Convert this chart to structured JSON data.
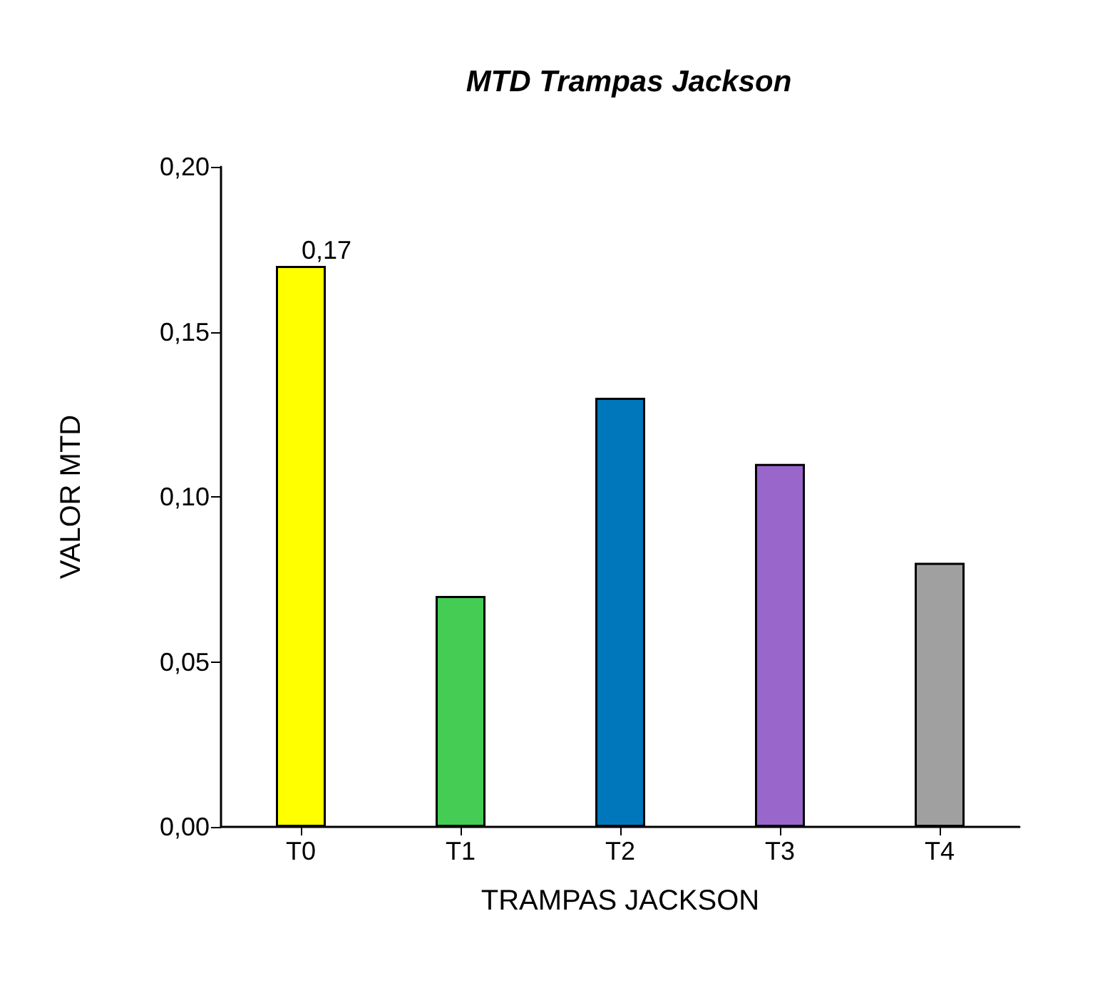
{
  "chart_data": {
    "type": "bar",
    "title": "MTD Trampas Jackson",
    "xlabel": "TRAMPAS JACKSON",
    "ylabel": "VALOR MTD",
    "categories": [
      "T0",
      "T1",
      "T2",
      "T3",
      "T4"
    ],
    "values": [
      0.17,
      0.07,
      0.13,
      0.11,
      0.08
    ],
    "colors": [
      "#ffff00",
      "#44cc55",
      "#0077bb",
      "#9966cc",
      "#a0a0a0"
    ],
    "value_labels": [
      "0,17",
      null,
      null,
      null,
      null
    ],
    "ylim": [
      0,
      0.2
    ],
    "yticks": [
      {
        "value": 0,
        "label": "0,00"
      },
      {
        "value": 0.05,
        "label": "0,05"
      },
      {
        "value": 0.1,
        "label": "0,10"
      },
      {
        "value": 0.15,
        "label": "0,15"
      },
      {
        "value": 0.2,
        "label": "0,20"
      }
    ],
    "grid": false
  }
}
